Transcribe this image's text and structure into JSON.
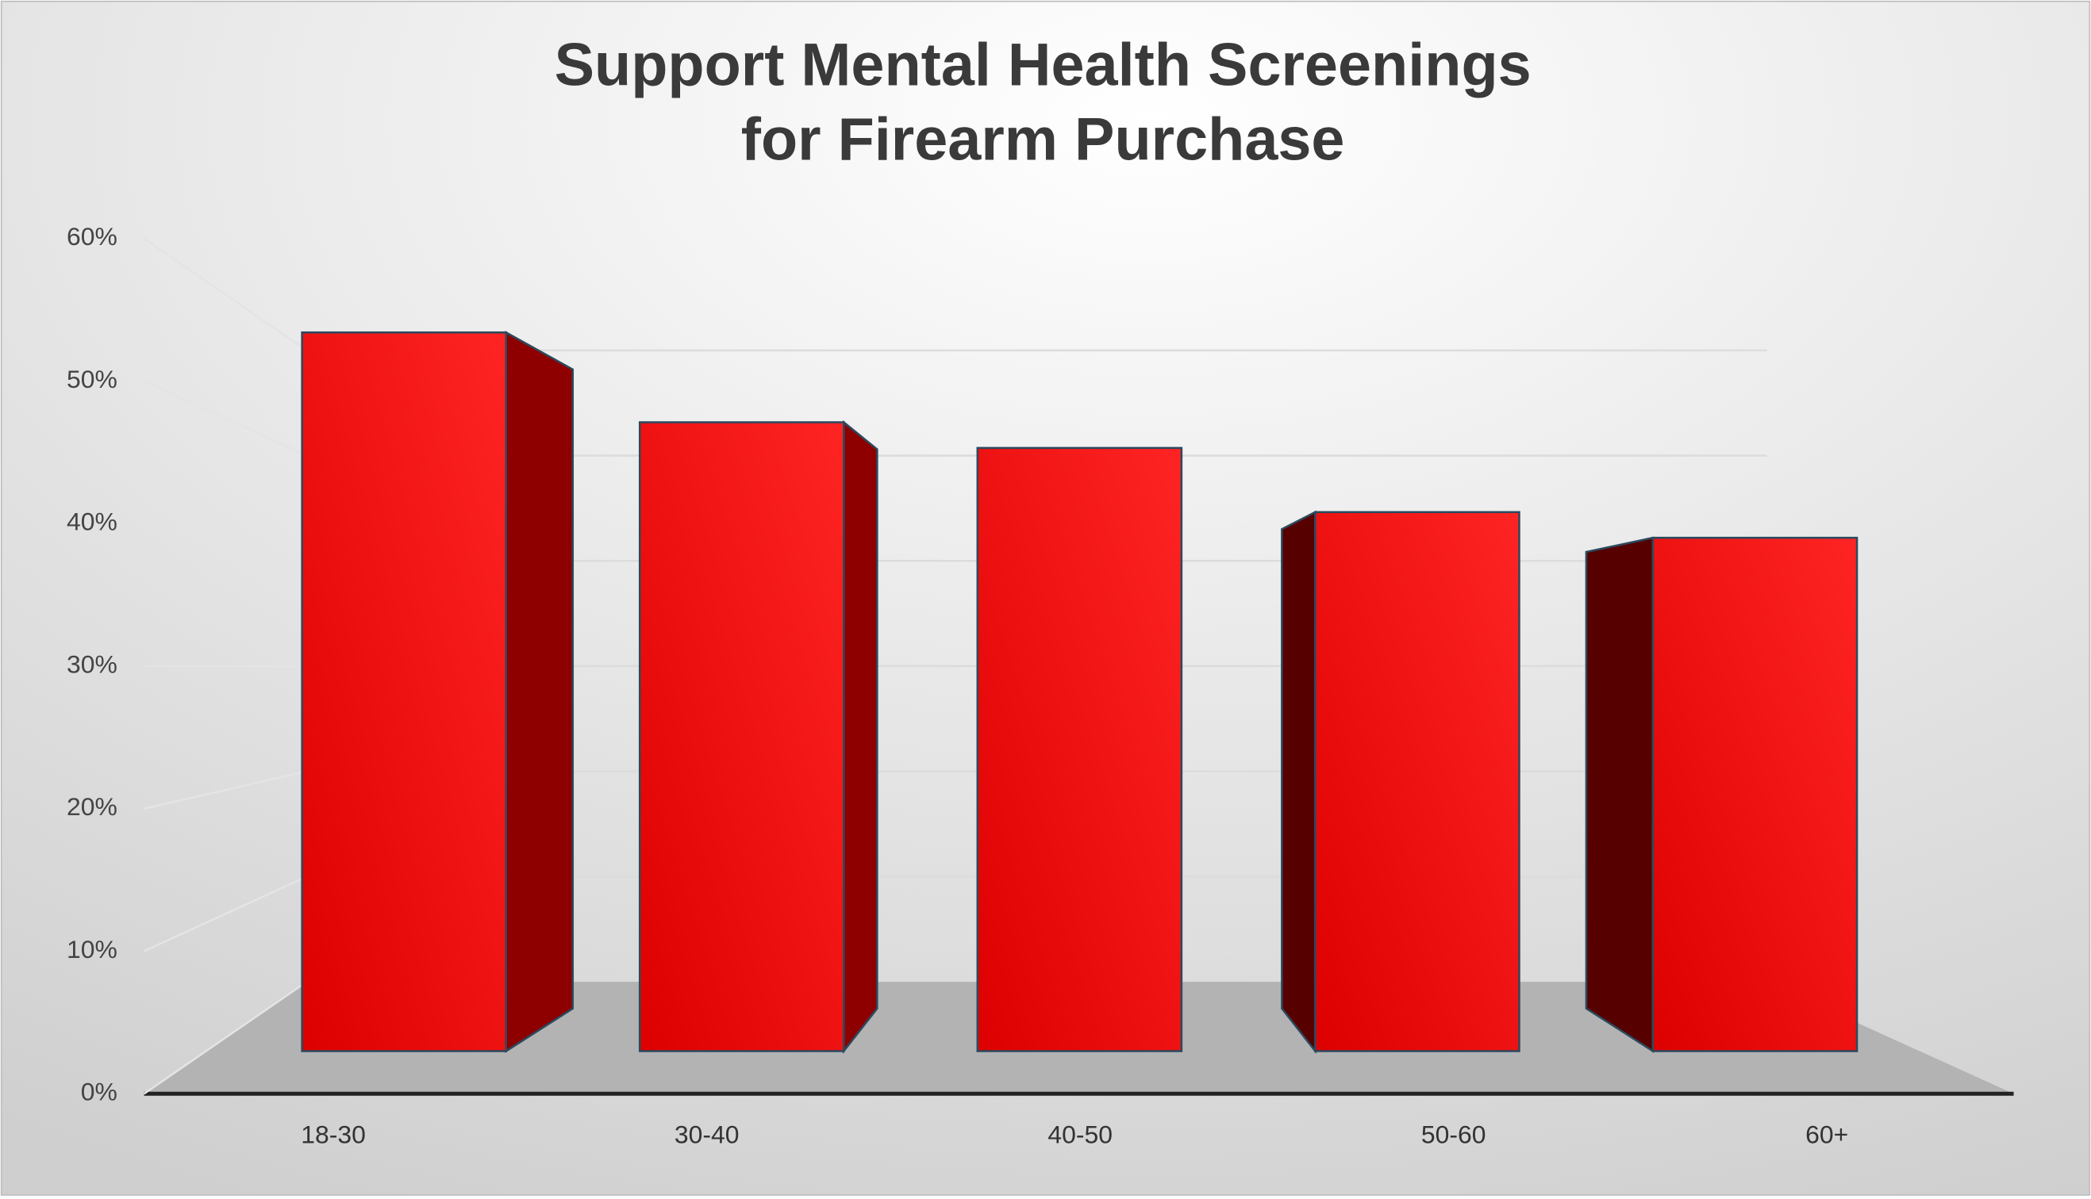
{
  "chart_data": {
    "type": "bar3d",
    "title": [
      "Support Mental Health Screenings",
      "for Firearm Purchase"
    ],
    "categories": [
      "18-30",
      "30-40",
      "40-50",
      "50-60",
      "60+"
    ],
    "values": [
      56,
      49,
      47,
      42,
      40
    ],
    "color": "#e00000",
    "ylim": [
      0,
      60
    ],
    "yticks": [
      {
        "value": 0,
        "label": "0%"
      },
      {
        "value": 10,
        "label": "10%"
      },
      {
        "value": 20,
        "label": "20%"
      },
      {
        "value": 30,
        "label": "30%"
      },
      {
        "value": 40,
        "label": "40%"
      },
      {
        "value": 50,
        "label": "50%"
      },
      {
        "value": 60,
        "label": "60%"
      }
    ],
    "grid": true
  }
}
